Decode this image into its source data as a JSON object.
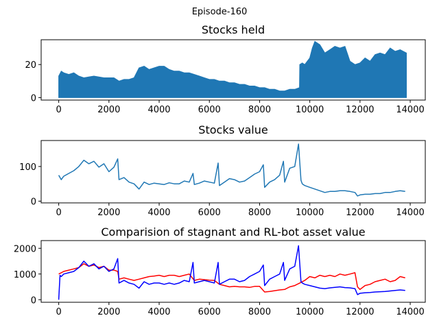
{
  "figure": {
    "suptitle": "Episode-160"
  },
  "chart_data": [
    {
      "type": "area",
      "title": "Stocks held",
      "xlabel": "",
      "ylabel": "",
      "xlim": [
        -700,
        14600
      ],
      "ylim": [
        -1.5,
        35
      ],
      "xticks": [
        0,
        2000,
        4000,
        6000,
        8000,
        10000,
        12000,
        14000
      ],
      "xtick_labels": [
        "0",
        "2000",
        "4000",
        "6000",
        "8000",
        "10000",
        "12000",
        "14000"
      ],
      "yticks": [
        0,
        20
      ],
      "ytick_labels": [
        "0",
        "20"
      ],
      "grid": false,
      "series": [
        {
          "color": "#1f77b4",
          "x": [
            0,
            100,
            200,
            400,
            600,
            800,
            1000,
            1400,
            1800,
            2200,
            2400,
            2600,
            2800,
            3000,
            3200,
            3400,
            3600,
            3800,
            4000,
            4200,
            4400,
            4600,
            4800,
            5000,
            5200,
            5400,
            5600,
            5800,
            6000,
            6200,
            6400,
            6600,
            6800,
            7000,
            7200,
            7400,
            7600,
            7800,
            8000,
            8200,
            8400,
            8600,
            8800,
            9000,
            9200,
            9400,
            9590,
            9600,
            9700,
            9800,
            10000,
            10100,
            10200,
            10400,
            10600,
            10800,
            11000,
            11200,
            11400,
            11600,
            11800,
            12000,
            12200,
            12400,
            12600,
            12800,
            13000,
            13200,
            13400,
            13600,
            13850
          ],
          "values": [
            13,
            16,
            15,
            14,
            15,
            13,
            12,
            13,
            12,
            12,
            10,
            11,
            11,
            12,
            18,
            19,
            17,
            18,
            19,
            19,
            17,
            16,
            16,
            15,
            15,
            14,
            13,
            12,
            11,
            11,
            10,
            10,
            9,
            9,
            8,
            8,
            7,
            7,
            6,
            6,
            5,
            5,
            4,
            4,
            5,
            5,
            6,
            20,
            21,
            20,
            24,
            30,
            34,
            32,
            27,
            29,
            31,
            30,
            31,
            22,
            20,
            21,
            24,
            22,
            26,
            27,
            26,
            30,
            28,
            29,
            27
          ]
        }
      ]
    },
    {
      "type": "line",
      "title": "Stocks value",
      "xlabel": "",
      "ylabel": "",
      "xlim": [
        -700,
        14600
      ],
      "ylim": [
        -5,
        175
      ],
      "xticks": [
        0,
        2000,
        4000,
        6000,
        8000,
        10000,
        12000,
        14000
      ],
      "xtick_labels": [
        "0",
        "2000",
        "4000",
        "6000",
        "8000",
        "10000",
        "12000",
        "14000"
      ],
      "yticks": [
        0,
        100
      ],
      "ytick_labels": [
        "0",
        "100"
      ],
      "grid": false,
      "series": [
        {
          "color": "#1f77b4",
          "x": [
            0,
            100,
            200,
            400,
            600,
            800,
            1000,
            1200,
            1400,
            1600,
            1800,
            2000,
            2200,
            2350,
            2400,
            2600,
            2800,
            3000,
            3200,
            3400,
            3600,
            3800,
            4000,
            4200,
            4400,
            4600,
            4800,
            5000,
            5200,
            5350,
            5400,
            5600,
            5800,
            6000,
            6200,
            6350,
            6400,
            6600,
            6800,
            7000,
            7200,
            7400,
            7600,
            7800,
            8000,
            8150,
            8200,
            8400,
            8600,
            8800,
            8950,
            9000,
            9200,
            9400,
            9550,
            9650,
            9700,
            9800,
            10000,
            10200,
            10400,
            10600,
            10800,
            11000,
            11200,
            11400,
            11600,
            11800,
            11900,
            12000,
            12200,
            12400,
            12600,
            12800,
            13000,
            13200,
            13400,
            13600,
            13800
          ],
          "values": [
            75,
            62,
            72,
            80,
            88,
            100,
            118,
            108,
            115,
            98,
            108,
            85,
            98,
            122,
            62,
            68,
            55,
            50,
            35,
            55,
            48,
            52,
            50,
            48,
            53,
            50,
            50,
            58,
            55,
            80,
            48,
            52,
            58,
            55,
            52,
            110,
            45,
            55,
            65,
            62,
            55,
            58,
            68,
            78,
            85,
            105,
            40,
            55,
            62,
            75,
            115,
            55,
            95,
            100,
            165,
            60,
            50,
            45,
            40,
            35,
            30,
            25,
            28,
            28,
            30,
            30,
            28,
            25,
            15,
            18,
            20,
            20,
            22,
            22,
            25,
            25,
            28,
            30,
            28
          ]
        }
      ]
    },
    {
      "type": "line",
      "title": "Comparision of stagnant and RL-bot asset value",
      "xlabel": "",
      "ylabel": "",
      "xlim": [
        -700,
        14600
      ],
      "ylim": [
        -100,
        2300
      ],
      "xticks": [
        0,
        2000,
        4000,
        6000,
        8000,
        10000,
        12000,
        14000
      ],
      "xtick_labels": [
        "0",
        "2000",
        "4000",
        "6000",
        "8000",
        "10000",
        "12000",
        "14000"
      ],
      "yticks": [
        0,
        1000,
        2000
      ],
      "ytick_labels": [
        "0",
        "1000",
        "2000"
      ],
      "grid": false,
      "series": [
        {
          "color": "#ff0000",
          "x": [
            0,
            100,
            200,
            400,
            600,
            800,
            1000,
            1200,
            1400,
            1600,
            1800,
            2000,
            2200,
            2350,
            2400,
            2600,
            2800,
            3000,
            3200,
            3400,
            3600,
            3800,
            4000,
            4200,
            4400,
            4600,
            4800,
            5000,
            5200,
            5400,
            5600,
            5800,
            6000,
            6200,
            6400,
            6600,
            6800,
            7000,
            7200,
            7400,
            7600,
            7800,
            8000,
            8200,
            8400,
            8600,
            8800,
            9000,
            9200,
            9400,
            9600,
            9800,
            10000,
            10200,
            10400,
            10600,
            10800,
            11000,
            11200,
            11400,
            11600,
            11800,
            11900,
            12000,
            12200,
            12400,
            12600,
            12800,
            13000,
            13200,
            13400,
            13600,
            13800
          ],
          "values": [
            1000,
            1050,
            1100,
            1150,
            1200,
            1250,
            1400,
            1300,
            1350,
            1250,
            1300,
            1150,
            1150,
            1100,
            800,
            850,
            800,
            750,
            800,
            850,
            900,
            920,
            950,
            900,
            950,
            950,
            900,
            950,
            1000,
            750,
            800,
            780,
            760,
            750,
            600,
            550,
            500,
            520,
            500,
            500,
            480,
            520,
            520,
            300,
            320,
            350,
            380,
            400,
            500,
            550,
            650,
            750,
            900,
            850,
            950,
            900,
            950,
            900,
            1000,
            950,
            1000,
            1050,
            500,
            400,
            550,
            600,
            700,
            750,
            800,
            700,
            750,
            900,
            850
          ]
        },
        {
          "color": "#0000ff",
          "x": [
            0,
            50,
            100,
            200,
            400,
            600,
            800,
            1000,
            1200,
            1400,
            1600,
            1800,
            2000,
            2200,
            2350,
            2400,
            2600,
            2800,
            3000,
            3200,
            3400,
            3600,
            3800,
            4000,
            4200,
            4400,
            4600,
            4800,
            5000,
            5200,
            5350,
            5400,
            5600,
            5800,
            6000,
            6200,
            6350,
            6400,
            6600,
            6800,
            7000,
            7200,
            7400,
            7600,
            7800,
            8000,
            8150,
            8200,
            8400,
            8600,
            8800,
            8950,
            9000,
            9200,
            9400,
            9550,
            9650,
            9700,
            9800,
            10000,
            10200,
            10400,
            10600,
            10800,
            11000,
            11200,
            11400,
            11600,
            11800,
            11900,
            12000,
            12200,
            12400,
            12600,
            12800,
            13000,
            13200,
            13400,
            13600,
            13800
          ],
          "values": [
            0,
            950,
            900,
            1000,
            1050,
            1100,
            1250,
            1500,
            1300,
            1400,
            1200,
            1300,
            1100,
            1200,
            1600,
            650,
            750,
            650,
            600,
            450,
            700,
            600,
            650,
            650,
            600,
            650,
            600,
            650,
            750,
            700,
            1450,
            650,
            700,
            750,
            700,
            650,
            1450,
            600,
            700,
            800,
            800,
            700,
            750,
            900,
            1000,
            1100,
            1350,
            550,
            800,
            900,
            1000,
            1450,
            750,
            1200,
            1300,
            2100,
            700,
            650,
            600,
            550,
            500,
            450,
            430,
            460,
            480,
            500,
            470,
            460,
            430,
            200,
            250,
            270,
            280,
            300,
            310,
            320,
            340,
            360,
            380,
            360
          ]
        }
      ]
    }
  ]
}
